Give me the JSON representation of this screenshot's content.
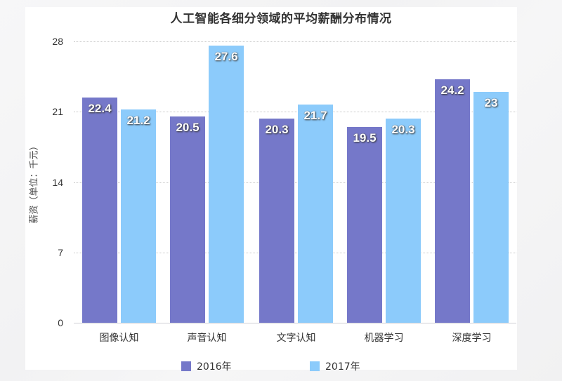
{
  "chart_data": {
    "type": "bar",
    "title": "人工智能各细分领域的平均薪酬分布情况",
    "xlabel": "",
    "ylabel": "薪资（单位：千元）",
    "ylim": [
      0,
      28
    ],
    "yticks": [
      "0",
      "7",
      "14",
      "21",
      "28"
    ],
    "grid": true,
    "legend_position": "bottom",
    "categories": [
      "图像认知",
      "声音认知",
      "文字认知",
      "机器学习",
      "深度学习"
    ],
    "series": [
      {
        "name": "2016年",
        "color": "#7578c9",
        "values": [
          22.4,
          20.5,
          20.3,
          19.5,
          24.2
        ],
        "labels": [
          "22.4",
          "20.5",
          "20.3",
          "19.5",
          "24.2"
        ]
      },
      {
        "name": "2017年",
        "color": "#8ccbfb",
        "values": [
          21.2,
          27.6,
          21.7,
          20.3,
          23
        ],
        "labels": [
          "21.2",
          "27.6",
          "21.7",
          "20.3",
          "23"
        ]
      }
    ]
  }
}
